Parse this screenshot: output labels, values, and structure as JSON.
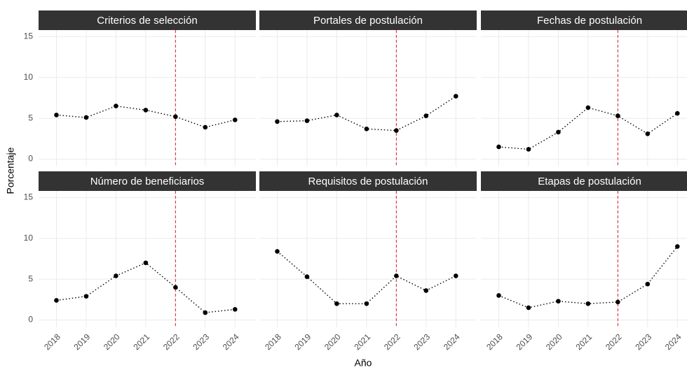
{
  "chart_data": {
    "type": "line",
    "xlabel": "Año",
    "ylabel": "Porcentaje",
    "x": [
      2018,
      2019,
      2020,
      2021,
      2022,
      2023,
      2024
    ],
    "xticks": [
      2018,
      2019,
      2020,
      2021,
      2022,
      2023,
      2024
    ],
    "xlim": [
      2017.4,
      2024.7
    ],
    "ylim": [
      -0.9,
      15.8
    ],
    "yticks": [
      0,
      5,
      10,
      15
    ],
    "grid": true,
    "reference_x": 2022,
    "reference_color": "#e41a1c",
    "color": "#000000",
    "panels": [
      {
        "title": "Criterios de selección",
        "values": [
          5.4,
          5.1,
          6.5,
          6.0,
          5.2,
          3.9,
          4.8
        ]
      },
      {
        "title": "Portales de postulación",
        "values": [
          4.6,
          4.7,
          5.4,
          3.7,
          3.5,
          5.3,
          7.7
        ]
      },
      {
        "title": "Fechas de postulación",
        "values": [
          1.5,
          1.2,
          3.3,
          6.3,
          5.3,
          3.1,
          5.6
        ]
      },
      {
        "title": "Número de beneficiarios",
        "values": [
          2.4,
          2.9,
          5.4,
          7.0,
          4.0,
          0.9,
          1.3
        ]
      },
      {
        "title": "Requisitos de postulación",
        "values": [
          8.4,
          5.3,
          2.0,
          2.0,
          5.4,
          3.6,
          5.4
        ]
      },
      {
        "title": "Etapas de postulación",
        "values": [
          3.0,
          1.5,
          2.3,
          2.0,
          2.2,
          4.4,
          9.0
        ]
      }
    ]
  }
}
